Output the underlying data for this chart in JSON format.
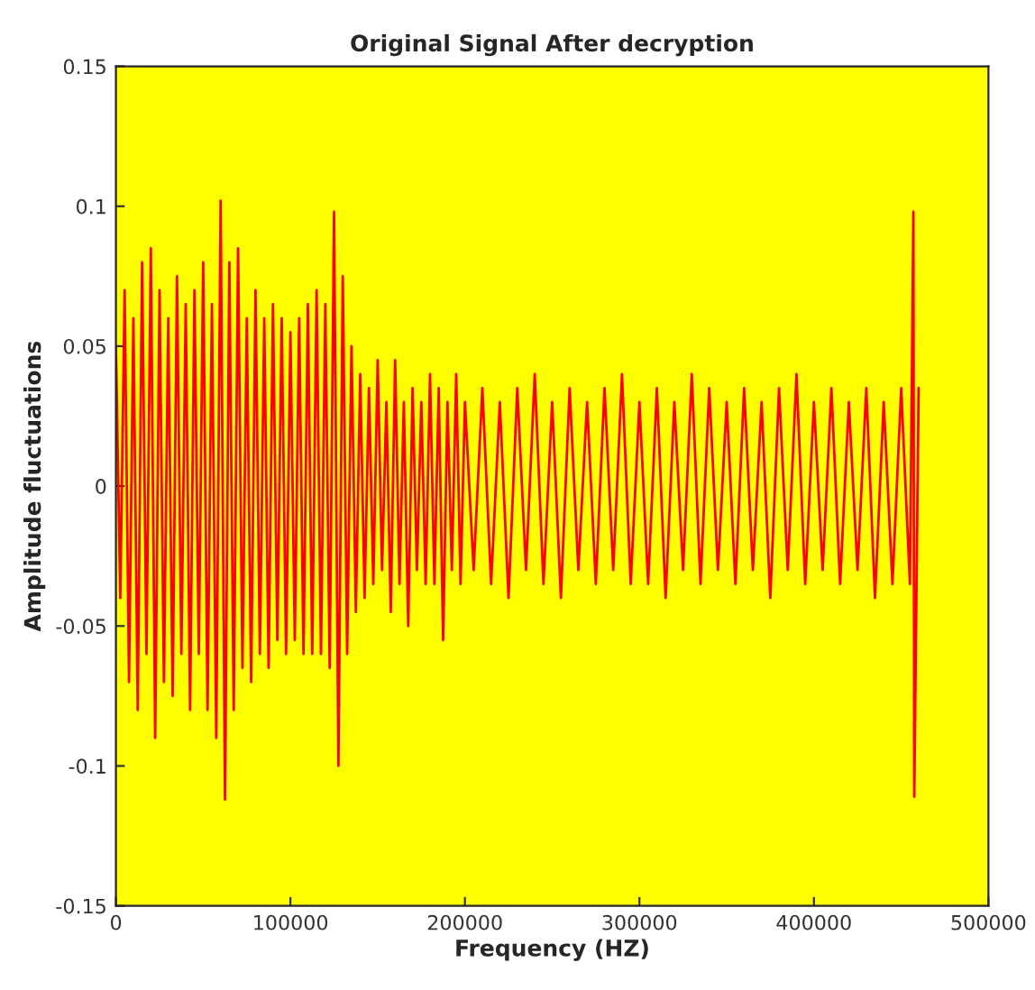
{
  "chart_data": {
    "type": "line",
    "title": "Original Signal After decryption",
    "xlabel": "Frequency (HZ)",
    "ylabel": "Amplitude fluctuations",
    "xlim": [
      0,
      500000
    ],
    "xticks": [
      0,
      100000,
      200000,
      300000,
      400000,
      500000
    ],
    "ylim": [
      -0.15,
      0.15
    ],
    "yticks": [
      -0.15,
      -0.1,
      -0.05,
      0,
      0.05,
      0.1,
      0.15
    ],
    "grid": false,
    "legend": false,
    "series": [
      {
        "color": "#ff0000",
        "x": [
          0,
          2500,
          5000,
          7500,
          10000,
          12500,
          15000,
          17500,
          20000,
          22500,
          25000,
          27500,
          30000,
          32500,
          35000,
          37500,
          40000,
          42500,
          45000,
          47500,
          50000,
          52500,
          55000,
          57500,
          60000,
          62500,
          65000,
          67500,
          70000,
          72500,
          75000,
          77500,
          80000,
          82500,
          85000,
          87500,
          90000,
          92500,
          95000,
          97500,
          100000,
          102500,
          105000,
          107500,
          110000,
          112500,
          115000,
          117500,
          120000,
          122500,
          125000,
          127500,
          130000,
          132500,
          135000,
          137500,
          140000,
          142500,
          145000,
          147500,
          150000,
          152500,
          155000,
          157500,
          160000,
          162500,
          165000,
          167500,
          170000,
          172500,
          175000,
          177500,
          180000,
          182500,
          185000,
          187500,
          190000,
          192500,
          195000,
          197500,
          200000,
          205000,
          210000,
          215000,
          220000,
          225000,
          230000,
          235000,
          240000,
          245000,
          250000,
          255000,
          260000,
          265000,
          270000,
          275000,
          280000,
          285000,
          290000,
          295000,
          300000,
          305000,
          310000,
          315000,
          320000,
          325000,
          330000,
          335000,
          340000,
          345000,
          350000,
          355000,
          360000,
          365000,
          370000,
          375000,
          380000,
          385000,
          390000,
          395000,
          400000,
          405000,
          410000,
          415000,
          420000,
          425000,
          430000,
          435000,
          440000,
          445000,
          450000,
          455000,
          457000,
          457500,
          460000
        ],
        "values": [
          0.05,
          -0.04,
          0.07,
          -0.07,
          0.06,
          -0.08,
          0.08,
          -0.06,
          0.085,
          -0.09,
          0.07,
          -0.07,
          0.06,
          -0.075,
          0.075,
          -0.06,
          0.065,
          -0.08,
          0.07,
          -0.06,
          0.08,
          -0.08,
          0.065,
          -0.09,
          0.102,
          -0.112,
          0.08,
          -0.08,
          0.085,
          -0.065,
          0.06,
          -0.07,
          0.07,
          -0.06,
          0.06,
          -0.065,
          0.065,
          -0.055,
          0.06,
          -0.06,
          0.055,
          -0.055,
          0.06,
          -0.06,
          0.065,
          -0.06,
          0.07,
          -0.06,
          0.065,
          -0.065,
          0.098,
          -0.1,
          0.075,
          -0.06,
          0.05,
          -0.045,
          0.04,
          -0.04,
          0.035,
          -0.035,
          0.045,
          -0.03,
          0.03,
          -0.045,
          0.045,
          -0.035,
          0.03,
          -0.05,
          0.035,
          -0.03,
          0.03,
          -0.035,
          0.04,
          -0.035,
          0.035,
          -0.055,
          0.03,
          -0.03,
          0.04,
          -0.035,
          0.03,
          -0.03,
          0.035,
          -0.035,
          0.03,
          -0.04,
          0.035,
          -0.03,
          0.04,
          -0.035,
          0.03,
          -0.04,
          0.035,
          -0.03,
          0.03,
          -0.035,
          0.035,
          -0.03,
          0.04,
          -0.035,
          0.03,
          -0.035,
          0.035,
          -0.04,
          0.03,
          -0.03,
          0.04,
          -0.035,
          0.035,
          -0.03,
          0.03,
          -0.035,
          0.035,
          -0.03,
          0.03,
          -0.04,
          0.035,
          -0.03,
          0.04,
          -0.035,
          0.03,
          -0.03,
          0.035,
          -0.035,
          0.03,
          -0.03,
          0.035,
          -0.04,
          0.03,
          -0.035,
          0.035,
          -0.035,
          0.098,
          -0.111,
          0.035
        ]
      }
    ]
  }
}
